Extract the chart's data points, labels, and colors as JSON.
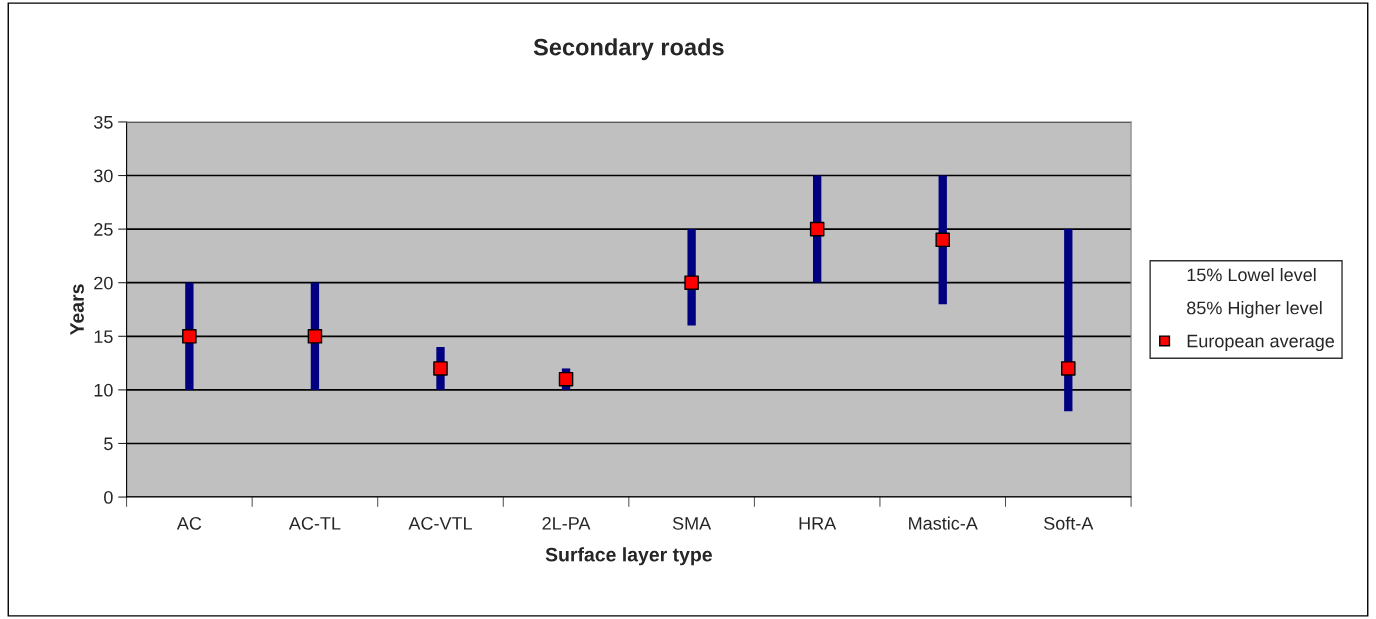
{
  "chart_data": {
    "type": "scatter",
    "title": "Secondary roads",
    "xlabel": "Surface layer type",
    "ylabel": "Years",
    "categories": [
      "AC",
      "AC-TL",
      "AC-VTL",
      "2L-PA",
      "SMA",
      "HRA",
      "Mastic-A",
      "Soft-A"
    ],
    "series": [
      {
        "name": "European average",
        "marker": "square",
        "color": "#ff0000",
        "values": [
          15,
          15,
          12,
          11,
          20,
          25,
          24,
          12
        ],
        "errors": [
          [
            10,
            20
          ],
          [
            10,
            20
          ],
          [
            10,
            14
          ],
          [
            10,
            12
          ],
          [
            16,
            25
          ],
          [
            20,
            30
          ],
          [
            18,
            30
          ],
          [
            8,
            25
          ]
        ]
      }
    ],
    "annotations": [
      "15% Lowel level",
      "85% Higher level"
    ],
    "ylim": [
      0,
      35
    ],
    "yticks": [
      0,
      5,
      10,
      15,
      20,
      25,
      30,
      35
    ],
    "grid": "y",
    "legend": "right"
  }
}
